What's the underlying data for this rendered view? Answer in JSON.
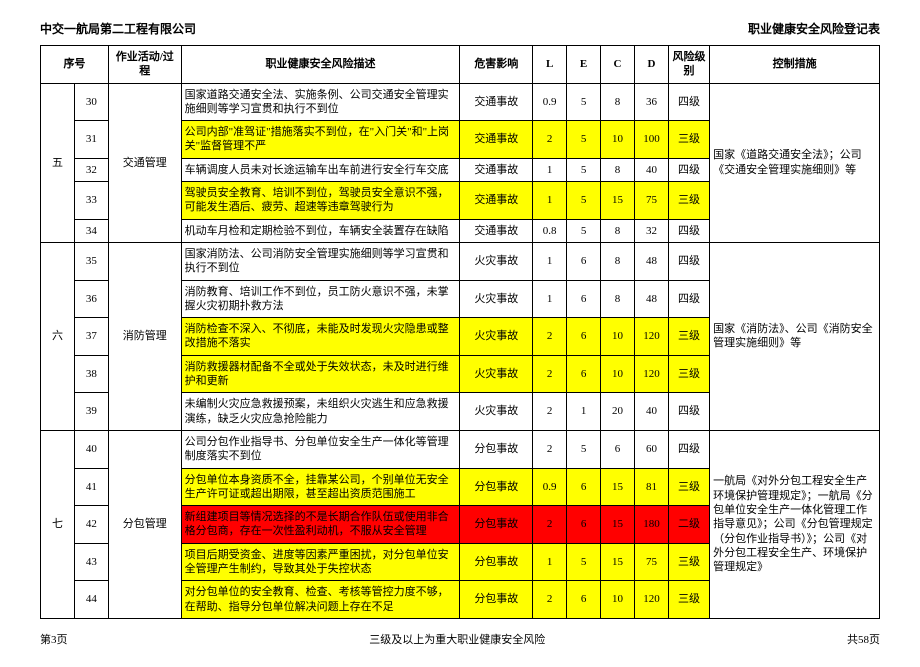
{
  "header": {
    "left": "中交一航局第二工程有限公司",
    "right": "职业健康安全风险登记表"
  },
  "columns": [
    "序号",
    "",
    "作业活动/过程",
    "职业健康安全风险描述",
    "危害影响",
    "L",
    "E",
    "C",
    "D",
    "风险级别",
    "控制措施"
  ],
  "groups": [
    {
      "seq": "五",
      "activity": "交通管理",
      "control": "国家《道路交通安全法》；公司《交通安全管理实施细则》等",
      "rows": [
        {
          "n": "30",
          "desc": "国家道路交通安全法、实施条例、公司交通安全管理实施细则等学习宣贯和执行不到位",
          "impact": "交通事故",
          "L": "0.9",
          "E": "5",
          "C": "8",
          "D": "36",
          "level": "四级",
          "hl": "none"
        },
        {
          "n": "31",
          "desc": "公司内部\"准驾证\"措施落实不到位，在\"入门关\"和\"上岗关\"监督管理不严",
          "impact": "交通事故",
          "L": "2",
          "E": "5",
          "C": "10",
          "D": "100",
          "level": "三级",
          "hl": "yellow"
        },
        {
          "n": "32",
          "desc": "车辆调度人员未对长途运输车出车前进行安全行车交底",
          "impact": "交通事故",
          "L": "1",
          "E": "5",
          "C": "8",
          "D": "40",
          "level": "四级",
          "hl": "none"
        },
        {
          "n": "33",
          "desc": "驾驶员安全教育、培训不到位，驾驶员安全意识不强，可能发生酒后、疲劳、超速等违章驾驶行为",
          "impact": "交通事故",
          "L": "1",
          "E": "5",
          "C": "15",
          "D": "75",
          "level": "三级",
          "hl": "yellow"
        },
        {
          "n": "34",
          "desc": "机动车月检和定期检验不到位，车辆安全装置存在缺陷",
          "impact": "交通事故",
          "L": "0.8",
          "E": "5",
          "C": "8",
          "D": "32",
          "level": "四级",
          "hl": "none"
        }
      ]
    },
    {
      "seq": "六",
      "activity": "消防管理",
      "control": "国家《消防法》、公司《消防安全管理实施细则》等",
      "rows": [
        {
          "n": "35",
          "desc": "国家消防法、公司消防安全管理实施细则等学习宣贯和执行不到位",
          "impact": "火灾事故",
          "L": "1",
          "E": "6",
          "C": "8",
          "D": "48",
          "level": "四级",
          "hl": "none"
        },
        {
          "n": "36",
          "desc": "消防教育、培训工作不到位，员工防火意识不强，未掌握火灾初期扑救方法",
          "impact": "火灾事故",
          "L": "1",
          "E": "6",
          "C": "8",
          "D": "48",
          "level": "四级",
          "hl": "none"
        },
        {
          "n": "37",
          "desc": "消防检查不深入、不彻底，未能及时发现火灾隐患或整改措施不落实",
          "impact": "火灾事故",
          "L": "2",
          "E": "6",
          "C": "10",
          "D": "120",
          "level": "三级",
          "hl": "yellow"
        },
        {
          "n": "38",
          "desc": "消防救援器材配备不全或处于失效状态，未及时进行维护和更新",
          "impact": "火灾事故",
          "L": "2",
          "E": "6",
          "C": "10",
          "D": "120",
          "level": "三级",
          "hl": "yellow"
        },
        {
          "n": "39",
          "desc": "未编制火灾应急救援预案，未组织火灾逃生和应急救援演练，缺乏火灾应急抢险能力",
          "impact": "火灾事故",
          "L": "2",
          "E": "1",
          "C": "20",
          "D": "40",
          "level": "四级",
          "hl": "none"
        }
      ]
    },
    {
      "seq": "七",
      "activity": "分包管理",
      "control": "一航局《对外分包工程安全生产环境保护管理规定》；一航局《分包单位安全生产一体化管理工作指导意见》；公司《分包管理规定（分包作业指导书）》；公司《对外分包工程安全生产、环境保护管理规定》",
      "rows": [
        {
          "n": "40",
          "desc": "公司分包作业指导书、分包单位安全生产一体化等管理制度落实不到位",
          "impact": "分包事故",
          "L": "2",
          "E": "5",
          "C": "6",
          "D": "60",
          "level": "四级",
          "hl": "none"
        },
        {
          "n": "41",
          "desc": "分包单位本身资质不全，挂靠某公司，个别单位无安全生产许可证或超出期限，甚至超出资质范围施工",
          "impact": "分包事故",
          "L": "0.9",
          "E": "6",
          "C": "15",
          "D": "81",
          "level": "三级",
          "hl": "yellow"
        },
        {
          "n": "42",
          "desc": "新组建项目等情况选择的不是长期合作队伍或使用非合格分包商，存在一次性盈利动机，不服从安全管理",
          "impact": "分包事故",
          "L": "2",
          "E": "6",
          "C": "15",
          "D": "180",
          "level": "二级",
          "hl": "red"
        },
        {
          "n": "43",
          "desc": "项目后期受资金、进度等因素严重困扰，对分包单位安全管理产生制约，导致其处于失控状态",
          "impact": "分包事故",
          "L": "1",
          "E": "5",
          "C": "15",
          "D": "75",
          "level": "三级",
          "hl": "yellow"
        },
        {
          "n": "44",
          "desc": "对分包单位的安全教育、检查、考核等管控力度不够，在帮助、指导分包单位解决问题上存在不足",
          "impact": "分包事故",
          "L": "2",
          "E": "6",
          "C": "10",
          "D": "120",
          "level": "三级",
          "hl": "yellow"
        }
      ]
    }
  ],
  "footer": {
    "left": "第3页",
    "center": "三级及以上为重大职业健康安全风险",
    "right": "共58页"
  }
}
